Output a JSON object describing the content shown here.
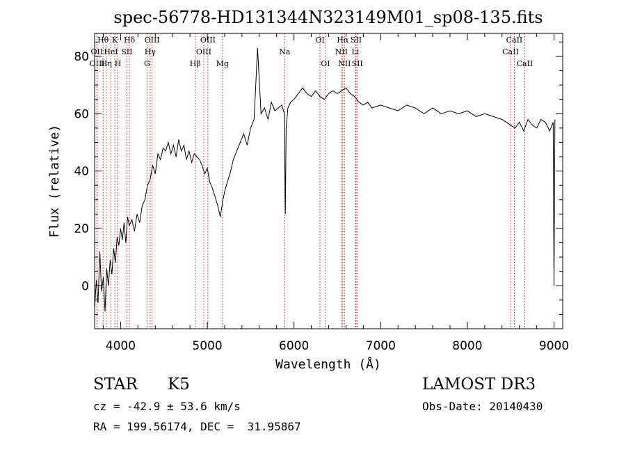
{
  "chart_data": {
    "type": "line",
    "title": "spec-56778-HD131344N323149M01_sp08-135.fits",
    "xlabel": "Wavelength (Å)",
    "ylabel": "Flux (relative)",
    "xlim": [
      3700,
      9100
    ],
    "ylim": [
      -15,
      88
    ],
    "xticks": [
      4000,
      5000,
      6000,
      7000,
      8000,
      9000
    ],
    "yticks": [
      0,
      20,
      40,
      60,
      80
    ],
    "grid": false,
    "series": [
      {
        "name": "flux",
        "x": [
          3700,
          3720,
          3740,
          3760,
          3780,
          3800,
          3820,
          3840,
          3860,
          3880,
          3900,
          3920,
          3940,
          3960,
          3980,
          4000,
          4020,
          4040,
          4060,
          4080,
          4100,
          4130,
          4160,
          4190,
          4220,
          4250,
          4280,
          4310,
          4340,
          4370,
          4400,
          4430,
          4460,
          4490,
          4520,
          4550,
          4580,
          4610,
          4640,
          4670,
          4700,
          4730,
          4760,
          4790,
          4820,
          4850,
          4880,
          4910,
          4940,
          4970,
          5000,
          5030,
          5060,
          5090,
          5120,
          5150,
          5180,
          5210,
          5240,
          5270,
          5300,
          5340,
          5380,
          5420,
          5460,
          5500,
          5540,
          5580,
          5620,
          5660,
          5700,
          5740,
          5780,
          5820,
          5860,
          5890,
          5900,
          5910,
          5930,
          5960,
          6000,
          6050,
          6100,
          6150,
          6200,
          6250,
          6300,
          6350,
          6400,
          6450,
          6500,
          6550,
          6600,
          6650,
          6700,
          6750,
          6800,
          6850,
          6900,
          7000,
          7100,
          7200,
          7300,
          7400,
          7500,
          7600,
          7700,
          7800,
          7900,
          8000,
          8100,
          8200,
          8300,
          8400,
          8500,
          8550,
          8600,
          8650,
          8700,
          8750,
          8800,
          8850,
          8900,
          8950,
          8990,
          9000,
          9010
        ],
        "values": [
          -8,
          2,
          -6,
          12,
          -2,
          3,
          -9,
          6,
          0,
          9,
          4,
          13,
          8,
          17,
          14,
          20,
          16,
          22,
          15,
          24,
          21,
          23,
          19,
          25,
          22,
          28,
          30,
          35,
          37,
          42,
          39,
          46,
          44,
          48,
          47,
          50,
          46,
          49,
          45,
          51,
          47,
          49,
          44,
          47,
          43,
          46,
          45,
          44,
          42,
          39,
          41,
          36,
          34,
          31,
          28,
          24,
          30,
          34,
          37,
          40,
          44,
          47,
          50,
          53,
          49,
          55,
          58,
          83,
          60,
          62,
          58,
          64,
          61,
          62,
          63,
          60,
          25,
          55,
          62,
          64,
          65,
          67,
          69,
          67,
          66,
          68,
          66,
          65,
          67,
          68,
          67,
          68,
          69,
          67,
          66,
          64,
          63,
          64,
          62,
          63,
          62,
          61,
          63,
          62,
          60,
          62,
          60,
          61,
          60,
          61,
          59,
          60,
          59,
          58,
          56,
          55,
          57,
          54,
          58,
          56,
          55,
          58,
          57,
          54,
          57,
          0,
          58
        ]
      }
    ],
    "lines": [
      {
        "label": "Hθ",
        "wavelength": 3798,
        "row": 1
      },
      {
        "label": "OII",
        "wavelength": 3727,
        "row": 2
      },
      {
        "label": "OIII",
        "wavelength": 3729,
        "row": 3
      },
      {
        "label": "K",
        "wavelength": 3934,
        "row": 1
      },
      {
        "label": "HeI",
        "wavelength": 3889,
        "row": 2
      },
      {
        "label": "Hη",
        "wavelength": 3835,
        "row": 3
      },
      {
        "label": "Hδ",
        "wavelength": 4102,
        "row": 1
      },
      {
        "label": "SII",
        "wavelength": 4072,
        "row": 2
      },
      {
        "label": "H",
        "wavelength": 3969,
        "row": 3
      },
      {
        "label": "OIII",
        "wavelength": 4363,
        "row": 1
      },
      {
        "label": "Hγ",
        "wavelength": 4341,
        "row": 2
      },
      {
        "label": "G",
        "wavelength": 4305,
        "row": 3
      },
      {
        "label": "OIII",
        "wavelength": 5007,
        "row": 1
      },
      {
        "label": "OIII",
        "wavelength": 4959,
        "row": 2
      },
      {
        "label": "Hβ",
        "wavelength": 4861,
        "row": 3
      },
      {
        "label": "Mg",
        "wavelength": 5175,
        "row": 3
      },
      {
        "label": "Na",
        "wavelength": 5893,
        "row": 2
      },
      {
        "label": "OI",
        "wavelength": 6300,
        "row": 1
      },
      {
        "label": "OI",
        "wavelength": 6363,
        "row": 3
      },
      {
        "label": "Hα",
        "wavelength": 6563,
        "row": 1
      },
      {
        "label": "NII",
        "wavelength": 6548,
        "row": 2
      },
      {
        "label": "NII",
        "wavelength": 6583,
        "row": 3
      },
      {
        "label": "SII",
        "wavelength": 6717,
        "row": 1
      },
      {
        "label": "Li",
        "wavelength": 6708,
        "row": 2
      },
      {
        "label": "SII",
        "wavelength": 6731,
        "row": 3
      },
      {
        "label": "CaII",
        "wavelength": 8542,
        "row": 1
      },
      {
        "label": "CaII",
        "wavelength": 8498,
        "row": 2
      },
      {
        "label": "CaII",
        "wavelength": 8662,
        "row": 3
      }
    ]
  },
  "info": {
    "class_label": "STAR",
    "subclass": "K5",
    "survey": "LAMOST DR3",
    "redshift": "cz = -42.9 ± 53.6 km/s",
    "obs_date": "Obs-Date: 20140430",
    "coords": "RA = 199.56174, DEC =  31.95867"
  }
}
